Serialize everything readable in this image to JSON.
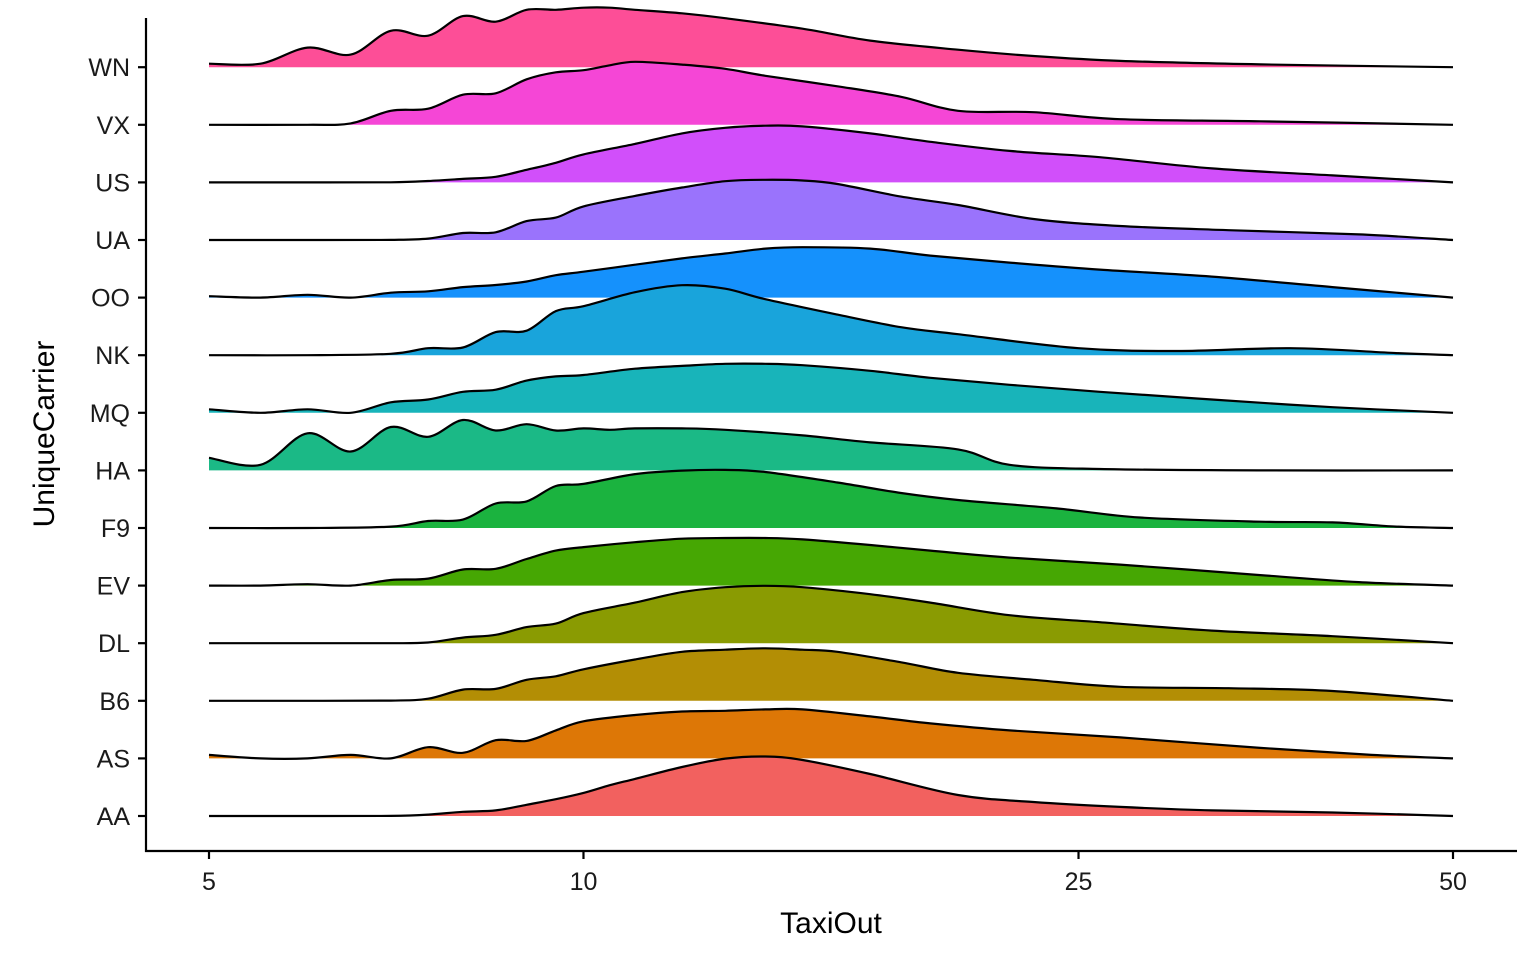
{
  "chart_data": {
    "type": "ridgeline",
    "xlabel": "TaxiOut",
    "ylabel": "UniqueCarrier",
    "x_scale": "log",
    "xlim": [
      5,
      50
    ],
    "x_ticks": [
      5,
      10,
      25,
      50
    ],
    "x_tick_labels": [
      "5",
      "10",
      "25",
      "50"
    ],
    "grid": false,
    "legend": "none",
    "series": [
      {
        "name": "AA",
        "color": "#F2615F",
        "points": [
          [
            5,
            0.0
          ],
          [
            6,
            0.0
          ],
          [
            7,
            0.002
          ],
          [
            7.5,
            0.02
          ],
          [
            8,
            0.06
          ],
          [
            8.5,
            0.08
          ],
          [
            9,
            0.16
          ],
          [
            9.5,
            0.24
          ],
          [
            10,
            0.33
          ],
          [
            10.5,
            0.44
          ],
          [
            11,
            0.53
          ],
          [
            12,
            0.7
          ],
          [
            13,
            0.82
          ],
          [
            14,
            0.85
          ],
          [
            15,
            0.8
          ],
          [
            17,
            0.6
          ],
          [
            20,
            0.3
          ],
          [
            23,
            0.2
          ],
          [
            27,
            0.13
          ],
          [
            32,
            0.08
          ],
          [
            40,
            0.05
          ],
          [
            50,
            0.0
          ]
        ]
      },
      {
        "name": "AS",
        "color": "#DD7706",
        "points": [
          [
            5,
            0.05
          ],
          [
            5.5,
            0.0
          ],
          [
            6,
            0.0
          ],
          [
            6.5,
            0.05
          ],
          [
            7,
            0.0
          ],
          [
            7.5,
            0.16
          ],
          [
            8,
            0.08
          ],
          [
            8.5,
            0.26
          ],
          [
            9,
            0.25
          ],
          [
            9.5,
            0.4
          ],
          [
            10,
            0.53
          ],
          [
            11,
            0.62
          ],
          [
            12,
            0.67
          ],
          [
            13,
            0.68
          ],
          [
            14,
            0.7
          ],
          [
            15,
            0.7
          ],
          [
            17,
            0.6
          ],
          [
            19,
            0.5
          ],
          [
            22,
            0.4
          ],
          [
            27,
            0.3
          ],
          [
            35,
            0.15
          ],
          [
            43,
            0.05
          ],
          [
            50,
            0.0
          ]
        ]
      },
      {
        "name": "B6",
        "color": "#B38E05",
        "points": [
          [
            5,
            0.0
          ],
          [
            6,
            0.0
          ],
          [
            7,
            0.003
          ],
          [
            7.5,
            0.03
          ],
          [
            8,
            0.16
          ],
          [
            8.5,
            0.17
          ],
          [
            9,
            0.3
          ],
          [
            9.5,
            0.35
          ],
          [
            10,
            0.45
          ],
          [
            11,
            0.59
          ],
          [
            12,
            0.7
          ],
          [
            13,
            0.73
          ],
          [
            14,
            0.75
          ],
          [
            15,
            0.73
          ],
          [
            16,
            0.7
          ],
          [
            18,
            0.55
          ],
          [
            20,
            0.4
          ],
          [
            23,
            0.3
          ],
          [
            27,
            0.2
          ],
          [
            33,
            0.18
          ],
          [
            40,
            0.14
          ],
          [
            50,
            0.0
          ]
        ]
      },
      {
        "name": "DL",
        "color": "#8A9B02",
        "points": [
          [
            5,
            0.0
          ],
          [
            6,
            0.0
          ],
          [
            7,
            0.0
          ],
          [
            7.5,
            0.01
          ],
          [
            8,
            0.08
          ],
          [
            8.5,
            0.12
          ],
          [
            9,
            0.23
          ],
          [
            9.5,
            0.28
          ],
          [
            10,
            0.43
          ],
          [
            11,
            0.58
          ],
          [
            12,
            0.73
          ],
          [
            13,
            0.8
          ],
          [
            14,
            0.82
          ],
          [
            15,
            0.8
          ],
          [
            17,
            0.7
          ],
          [
            19,
            0.58
          ],
          [
            22,
            0.4
          ],
          [
            26,
            0.3
          ],
          [
            32,
            0.18
          ],
          [
            40,
            0.1
          ],
          [
            50,
            0.0
          ]
        ]
      },
      {
        "name": "EV",
        "color": "#46A703",
        "points": [
          [
            5,
            0.0
          ],
          [
            5.5,
            0.0
          ],
          [
            6,
            0.02
          ],
          [
            6.5,
            0.0
          ],
          [
            7,
            0.08
          ],
          [
            7.5,
            0.1
          ],
          [
            8,
            0.23
          ],
          [
            8.5,
            0.24
          ],
          [
            9,
            0.38
          ],
          [
            9.5,
            0.5
          ],
          [
            10,
            0.55
          ],
          [
            11,
            0.62
          ],
          [
            12,
            0.67
          ],
          [
            13,
            0.68
          ],
          [
            14,
            0.68
          ],
          [
            15,
            0.66
          ],
          [
            17,
            0.58
          ],
          [
            19,
            0.5
          ],
          [
            22,
            0.4
          ],
          [
            27,
            0.3
          ],
          [
            35,
            0.15
          ],
          [
            42,
            0.05
          ],
          [
            50,
            0.0
          ]
        ]
      },
      {
        "name": "F9",
        "color": "#1BB33F",
        "points": [
          [
            5,
            0.0
          ],
          [
            6,
            0.0
          ],
          [
            7,
            0.02
          ],
          [
            7.5,
            0.1
          ],
          [
            8,
            0.12
          ],
          [
            8.5,
            0.35
          ],
          [
            9,
            0.38
          ],
          [
            9.5,
            0.6
          ],
          [
            10,
            0.63
          ],
          [
            11,
            0.77
          ],
          [
            12,
            0.82
          ],
          [
            13,
            0.83
          ],
          [
            14,
            0.8
          ],
          [
            16,
            0.65
          ],
          [
            18,
            0.5
          ],
          [
            20,
            0.4
          ],
          [
            24,
            0.28
          ],
          [
            28,
            0.15
          ],
          [
            35,
            0.09
          ],
          [
            40,
            0.08
          ],
          [
            45,
            0.02
          ],
          [
            50,
            0.0
          ]
        ]
      },
      {
        "name": "HA",
        "color": "#1BB986",
        "points": [
          [
            5,
            0.18
          ],
          [
            5.5,
            0.08
          ],
          [
            6,
            0.53
          ],
          [
            6.5,
            0.27
          ],
          [
            7,
            0.62
          ],
          [
            7.5,
            0.48
          ],
          [
            8,
            0.72
          ],
          [
            8.5,
            0.57
          ],
          [
            9,
            0.66
          ],
          [
            9.5,
            0.57
          ],
          [
            10,
            0.6
          ],
          [
            10.5,
            0.58
          ],
          [
            11,
            0.6
          ],
          [
            12,
            0.6
          ],
          [
            13,
            0.58
          ],
          [
            15,
            0.5
          ],
          [
            17,
            0.4
          ],
          [
            20,
            0.3
          ],
          [
            22,
            0.08
          ],
          [
            26,
            0.02
          ],
          [
            35,
            0.0
          ],
          [
            50,
            0.0
          ]
        ]
      },
      {
        "name": "MQ",
        "color": "#18B4BA",
        "points": [
          [
            5,
            0.05
          ],
          [
            5.5,
            0.0
          ],
          [
            6,
            0.05
          ],
          [
            6.5,
            0.0
          ],
          [
            7,
            0.15
          ],
          [
            7.5,
            0.19
          ],
          [
            8,
            0.3
          ],
          [
            8.5,
            0.33
          ],
          [
            9,
            0.46
          ],
          [
            9.5,
            0.52
          ],
          [
            10,
            0.54
          ],
          [
            11,
            0.63
          ],
          [
            12,
            0.67
          ],
          [
            13,
            0.7
          ],
          [
            14,
            0.7
          ],
          [
            15,
            0.68
          ],
          [
            17,
            0.6
          ],
          [
            19,
            0.5
          ],
          [
            22,
            0.4
          ],
          [
            26,
            0.3
          ],
          [
            32,
            0.19
          ],
          [
            40,
            0.08
          ],
          [
            50,
            0.0
          ]
        ]
      },
      {
        "name": "NK",
        "color": "#19A4DB",
        "points": [
          [
            5,
            0.0
          ],
          [
            6,
            0.0
          ],
          [
            7,
            0.02
          ],
          [
            7.5,
            0.1
          ],
          [
            8,
            0.11
          ],
          [
            8.5,
            0.33
          ],
          [
            9,
            0.35
          ],
          [
            9.5,
            0.63
          ],
          [
            10,
            0.7
          ],
          [
            11,
            0.9
          ],
          [
            12,
            1.0
          ],
          [
            13,
            0.95
          ],
          [
            14,
            0.8
          ],
          [
            16,
            0.58
          ],
          [
            18,
            0.4
          ],
          [
            20,
            0.3
          ],
          [
            25,
            0.1
          ],
          [
            30,
            0.06
          ],
          [
            37,
            0.1
          ],
          [
            45,
            0.03
          ],
          [
            50,
            0.0
          ]
        ]
      },
      {
        "name": "OO",
        "color": "#1591FC",
        "points": [
          [
            5,
            0.02
          ],
          [
            5.5,
            0.0
          ],
          [
            6,
            0.04
          ],
          [
            6.5,
            0.0
          ],
          [
            7,
            0.07
          ],
          [
            7.5,
            0.09
          ],
          [
            8,
            0.15
          ],
          [
            8.5,
            0.18
          ],
          [
            9,
            0.23
          ],
          [
            9.5,
            0.32
          ],
          [
            10,
            0.37
          ],
          [
            11,
            0.47
          ],
          [
            12,
            0.56
          ],
          [
            13,
            0.63
          ],
          [
            14,
            0.7
          ],
          [
            15,
            0.72
          ],
          [
            17,
            0.7
          ],
          [
            19,
            0.6
          ],
          [
            22,
            0.5
          ],
          [
            26,
            0.4
          ],
          [
            32,
            0.3
          ],
          [
            40,
            0.15
          ],
          [
            50,
            0.0
          ]
        ]
      },
      {
        "name": "UA",
        "color": "#9A73FC",
        "points": [
          [
            5,
            0.0
          ],
          [
            6,
            0.0
          ],
          [
            7,
            0.002
          ],
          [
            7.5,
            0.02
          ],
          [
            8,
            0.1
          ],
          [
            8.5,
            0.11
          ],
          [
            9,
            0.27
          ],
          [
            9.5,
            0.32
          ],
          [
            10,
            0.48
          ],
          [
            11,
            0.63
          ],
          [
            12,
            0.75
          ],
          [
            13,
            0.84
          ],
          [
            14,
            0.86
          ],
          [
            15,
            0.85
          ],
          [
            16,
            0.8
          ],
          [
            18,
            0.62
          ],
          [
            20,
            0.5
          ],
          [
            23,
            0.3
          ],
          [
            27,
            0.2
          ],
          [
            33,
            0.14
          ],
          [
            42,
            0.08
          ],
          [
            50,
            0.0
          ]
        ]
      },
      {
        "name": "US",
        "color": "#D14FFA",
        "points": [
          [
            5,
            0.0
          ],
          [
            6,
            0.0
          ],
          [
            7,
            0.002
          ],
          [
            7.5,
            0.02
          ],
          [
            8,
            0.05
          ],
          [
            8.5,
            0.08
          ],
          [
            9,
            0.18
          ],
          [
            9.5,
            0.28
          ],
          [
            10,
            0.4
          ],
          [
            11,
            0.55
          ],
          [
            12,
            0.7
          ],
          [
            13,
            0.78
          ],
          [
            14,
            0.81
          ],
          [
            15,
            0.8
          ],
          [
            17,
            0.7
          ],
          [
            19,
            0.58
          ],
          [
            22,
            0.45
          ],
          [
            26,
            0.36
          ],
          [
            32,
            0.2
          ],
          [
            40,
            0.1
          ],
          [
            50,
            0.0
          ]
        ]
      },
      {
        "name": "VX",
        "color": "#F546D6",
        "points": [
          [
            5,
            0.0
          ],
          [
            6,
            0.0
          ],
          [
            6.5,
            0.02
          ],
          [
            7,
            0.2
          ],
          [
            7.5,
            0.23
          ],
          [
            8,
            0.43
          ],
          [
            8.5,
            0.45
          ],
          [
            9,
            0.65
          ],
          [
            9.5,
            0.75
          ],
          [
            10,
            0.78
          ],
          [
            10.5,
            0.85
          ],
          [
            11,
            0.9
          ],
          [
            12,
            0.86
          ],
          [
            13,
            0.8
          ],
          [
            14,
            0.7
          ],
          [
            16,
            0.55
          ],
          [
            18,
            0.4
          ],
          [
            20,
            0.2
          ],
          [
            23,
            0.18
          ],
          [
            27,
            0.08
          ],
          [
            35,
            0.05
          ],
          [
            50,
            0.0
          ]
        ]
      },
      {
        "name": "WN",
        "color": "#FD4E97",
        "points": [
          [
            5,
            0.05
          ],
          [
            5.5,
            0.05
          ],
          [
            6,
            0.28
          ],
          [
            6.5,
            0.18
          ],
          [
            7,
            0.52
          ],
          [
            7.5,
            0.45
          ],
          [
            8,
            0.73
          ],
          [
            8.5,
            0.65
          ],
          [
            9,
            0.82
          ],
          [
            9.5,
            0.82
          ],
          [
            10,
            0.85
          ],
          [
            10.5,
            0.85
          ],
          [
            11,
            0.82
          ],
          [
            12,
            0.77
          ],
          [
            13,
            0.7
          ],
          [
            15,
            0.55
          ],
          [
            17,
            0.38
          ],
          [
            20,
            0.25
          ],
          [
            23,
            0.16
          ],
          [
            27,
            0.09
          ],
          [
            35,
            0.04
          ],
          [
            50,
            0.0
          ]
        ]
      }
    ]
  }
}
